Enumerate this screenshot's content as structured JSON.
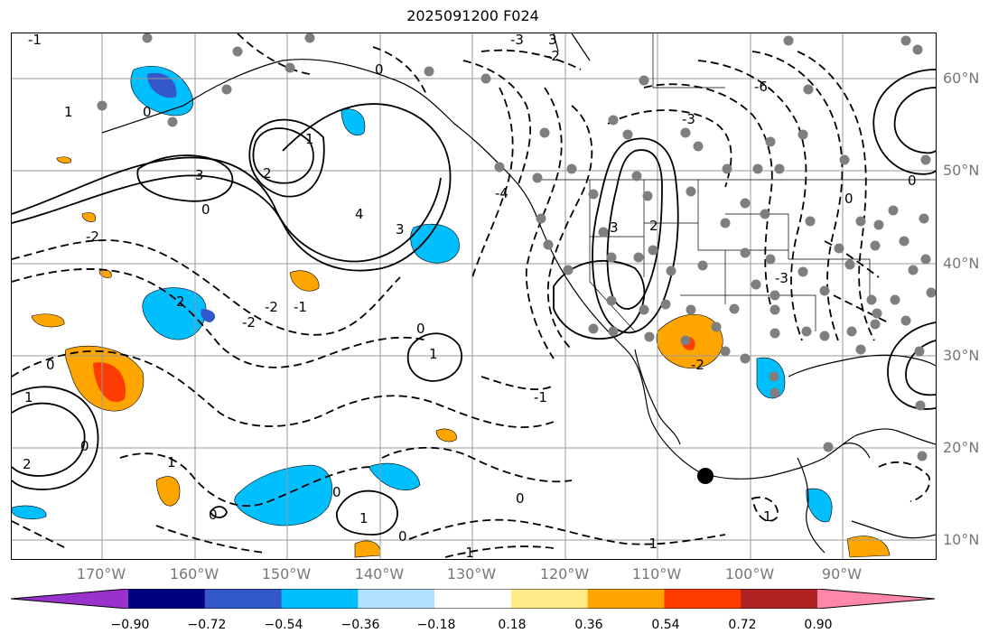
{
  "title": "2025091200 F024",
  "map": {
    "lat_labels": [
      "60°N",
      "50°N",
      "40°N",
      "30°N",
      "20°N",
      "10°N"
    ],
    "lon_labels": [
      "170°W",
      "160°W",
      "150°W",
      "140°W",
      "130°W",
      "120°W",
      "110°W",
      "100°W",
      "90°W"
    ],
    "contour_labels": [
      "0",
      "1",
      "2",
      "3",
      "4",
      "-1",
      "-2",
      "-3",
      "-4",
      "-6"
    ],
    "colors": {
      "contour": "#000000",
      "coast": "#000000",
      "grid": "#9a9a9a",
      "station": "#7f7f7f",
      "marker": "#000000"
    }
  },
  "colorbar": {
    "colors": [
      "#9932cc",
      "#000080",
      "#3358cc",
      "#00bfff",
      "#b0e2ff",
      "#ffffff",
      "#ffea8a",
      "#ffa500",
      "#ff3c00",
      "#b22222",
      "#ff88aa"
    ],
    "tick_labels": [
      "−0.90",
      "−0.72",
      "−0.54",
      "−0.36",
      "−0.18",
      "0.18",
      "0.36",
      "0.54",
      "0.72",
      "0.90"
    ]
  }
}
